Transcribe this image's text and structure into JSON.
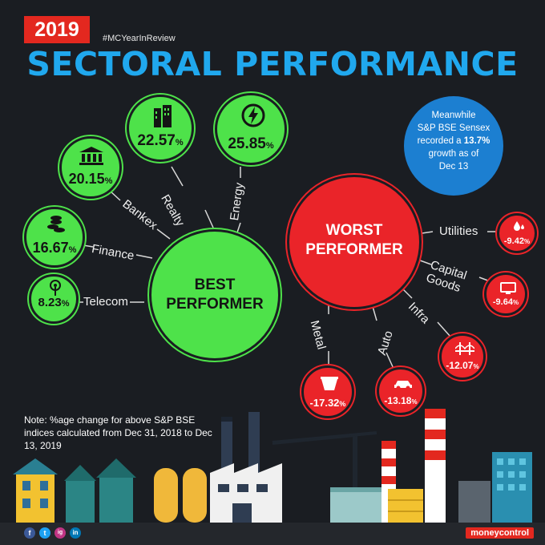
{
  "header": {
    "year": "2019",
    "hashtag": "#MCYearInReview",
    "title": "SECTORAL PERFORMANCE"
  },
  "best": {
    "title_line1": "BEST",
    "title_line2": "PERFORMER",
    "sectors": [
      {
        "name": "Realty",
        "value": "22.57",
        "icon": "building-icon"
      },
      {
        "name": "Energy",
        "value": "25.85",
        "icon": "lightning-icon"
      },
      {
        "name": "Bankex",
        "value": "20.15",
        "icon": "bank-icon"
      },
      {
        "name": "Finance",
        "value": "16.67",
        "icon": "coins-icon"
      },
      {
        "name": "Telecom",
        "value": "8.23",
        "icon": "tower-icon"
      }
    ]
  },
  "worst": {
    "title_line1": "WORST",
    "title_line2": "PERFORMER",
    "sectors": [
      {
        "name": "Utilities",
        "value": "-9.42",
        "icon": "water-drop-icon"
      },
      {
        "name_line1": "Capital",
        "name_line2": "Goods",
        "value": "-9.64",
        "icon": "tv-icon"
      },
      {
        "name": "Infra",
        "value": "-12.07",
        "icon": "bridge-icon"
      },
      {
        "name": "Auto",
        "value": "-13.18",
        "icon": "car-icon"
      },
      {
        "name": "Metal",
        "value": "-17.32",
        "icon": "bucket-icon"
      }
    ]
  },
  "sensex": {
    "line1": "Meanwhile",
    "line2": "S&P BSE Sensex",
    "line3a": "recorded a ",
    "line3b": "13.7%",
    "line4": "growth as of",
    "line5": "Dec 13"
  },
  "percent_sign": "%",
  "note": "Note: %age change for above S&P BSE indices calculated from Dec 31, 2018 to Dec 13, 2019",
  "footer": {
    "social": [
      "f",
      "t",
      "ig",
      "in"
    ],
    "brand": "moneycontrol"
  },
  "colors": {
    "background": "#1a1d22",
    "green": "#4ee24a",
    "red": "#ea2429",
    "blue": "#1c7fd1",
    "title": "#20a8ee"
  }
}
